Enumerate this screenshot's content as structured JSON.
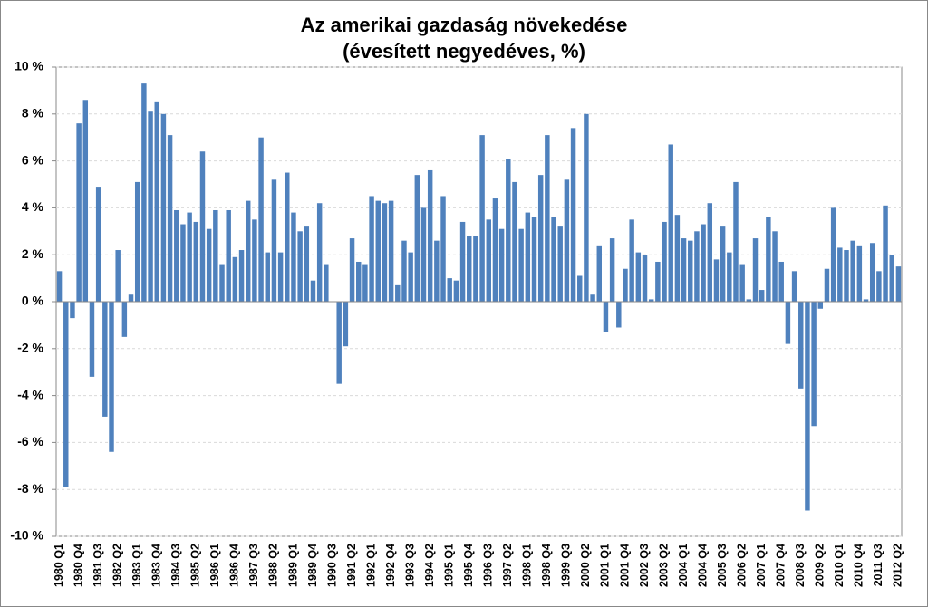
{
  "chart_data": {
    "type": "bar",
    "title": "Az amerikai gazdaság növekedése",
    "subtitle": "(évesített negyedéves, %)",
    "color": "#4f81bd",
    "grid": true,
    "ylim": [
      -10,
      10
    ],
    "yticks": [
      {
        "value": -10,
        "label": "-10 %"
      },
      {
        "value": -8,
        "label": "-8 %"
      },
      {
        "value": -6,
        "label": "-6 %"
      },
      {
        "value": -4,
        "label": "-4 %"
      },
      {
        "value": -2,
        "label": "-2 %"
      },
      {
        "value": 0,
        "label": "0 %"
      },
      {
        "value": 2,
        "label": "2 %"
      },
      {
        "value": 4,
        "label": "4 %"
      },
      {
        "value": 6,
        "label": "6 %"
      },
      {
        "value": 8,
        "label": "8 %"
      },
      {
        "value": 10,
        "label": "10 %"
      }
    ],
    "categories": [
      "1980 Q1",
      null,
      null,
      "1980 Q4",
      null,
      null,
      "1981 Q3",
      null,
      null,
      "1982 Q2",
      null,
      null,
      "1983 Q1",
      null,
      null,
      "1983 Q4",
      null,
      null,
      "1984 Q3",
      null,
      null,
      "1985 Q2",
      null,
      null,
      "1986 Q1",
      null,
      null,
      "1986 Q4",
      null,
      null,
      "1987 Q3",
      null,
      null,
      "1988 Q2",
      null,
      null,
      "1989 Q1",
      null,
      null,
      "1989 Q4",
      null,
      null,
      "1990 Q3",
      null,
      null,
      "1991 Q2",
      null,
      null,
      "1992 Q1",
      null,
      null,
      "1992 Q4",
      null,
      null,
      "1993 Q3",
      null,
      null,
      "1994 Q2",
      null,
      null,
      "1995 Q1",
      null,
      null,
      "1995 Q4",
      null,
      null,
      "1996 Q3",
      null,
      null,
      "1997 Q2",
      null,
      null,
      "1998 Q1",
      null,
      null,
      "1998 Q4",
      null,
      null,
      "1999 Q3",
      null,
      null,
      "2000 Q2",
      null,
      null,
      "2001 Q1",
      null,
      null,
      "2001 Q4",
      null,
      null,
      "2002 Q3",
      null,
      null,
      "2003 Q2",
      null,
      null,
      "2004 Q1",
      null,
      null,
      "2004 Q4",
      null,
      null,
      "2005 Q3",
      null,
      null,
      "2006 Q2",
      null,
      null,
      "2007 Q1",
      null,
      null,
      "2007 Q4",
      null,
      null,
      "2008 Q3",
      null,
      null,
      "2009 Q2",
      null,
      null,
      "2010 Q1",
      null,
      null,
      "2010 Q4",
      null,
      null,
      "2011 Q3",
      null,
      null,
      "2012 Q2"
    ],
    "values": [
      1.3,
      -7.9,
      -0.7,
      7.6,
      8.6,
      -3.2,
      4.9,
      -4.9,
      -6.4,
      2.2,
      -1.5,
      0.3,
      5.1,
      9.3,
      8.1,
      8.5,
      8.0,
      7.1,
      3.9,
      3.3,
      3.8,
      3.4,
      6.4,
      3.1,
      3.9,
      1.6,
      3.9,
      1.9,
      2.2,
      4.3,
      3.5,
      7.0,
      2.1,
      5.2,
      2.1,
      5.5,
      3.8,
      3.0,
      3.2,
      0.9,
      4.2,
      1.6,
      0.0,
      -3.5,
      -1.9,
      2.7,
      1.7,
      1.6,
      4.5,
      4.3,
      4.2,
      4.3,
      0.7,
      2.6,
      2.1,
      5.4,
      4.0,
      5.6,
      2.6,
      4.5,
      1.0,
      0.9,
      3.4,
      2.8,
      2.8,
      7.1,
      3.5,
      4.4,
      3.1,
      6.1,
      5.1,
      3.1,
      3.8,
      3.6,
      5.4,
      7.1,
      3.6,
      3.2,
      5.2,
      7.4,
      1.1,
      8.0,
      0.3,
      2.4,
      -1.3,
      2.7,
      -1.1,
      1.4,
      3.5,
      2.1,
      2.0,
      0.1,
      1.7,
      3.4,
      6.7,
      3.7,
      2.7,
      2.6,
      3.0,
      3.3,
      4.2,
      1.8,
      3.2,
      2.1,
      5.1,
      1.6,
      0.1,
      2.7,
      0.5,
      3.6,
      3.0,
      1.7,
      -1.8,
      1.3,
      -3.7,
      -8.9,
      -5.3,
      -0.3,
      1.4,
      4.0,
      2.3,
      2.2,
      2.6,
      2.4,
      0.1,
      2.5,
      1.3,
      4.1,
      2.0,
      1.5
    ]
  }
}
